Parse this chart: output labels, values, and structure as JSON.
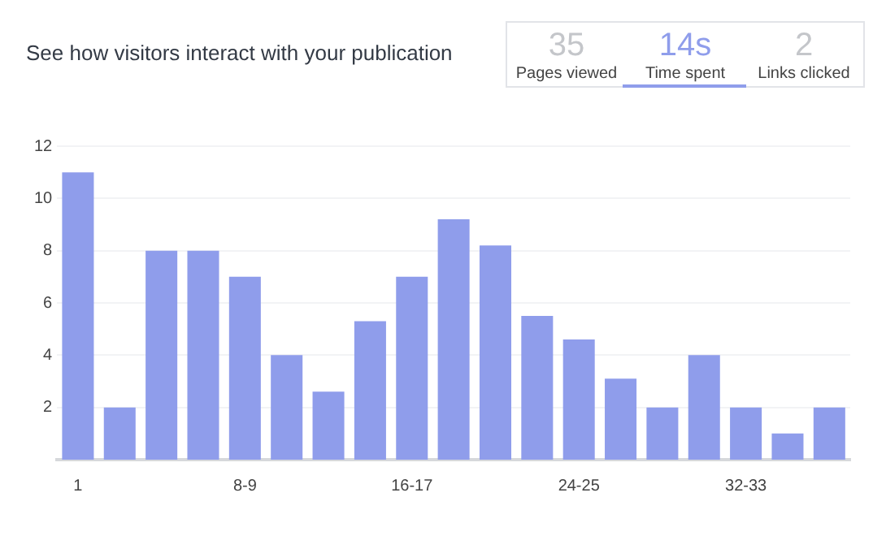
{
  "chart_data": {
    "type": "bar",
    "title": "See how visitors interact with your publication",
    "categories": [
      "1",
      null,
      null,
      null,
      "8-9",
      null,
      null,
      null,
      "16-17",
      null,
      null,
      null,
      "24-25",
      null,
      null,
      null,
      "32-33",
      null,
      null
    ],
    "values": [
      11,
      2,
      8,
      8,
      7,
      4,
      2.6,
      5.3,
      7,
      9.2,
      8.2,
      5.5,
      4.6,
      3.1,
      2,
      4,
      2,
      1,
      2
    ],
    "color": "#8f9deb",
    "ylim": [
      0,
      12
    ],
    "yticks": [
      2,
      4,
      6,
      8,
      10,
      12
    ],
    "grid": "y",
    "legend": false,
    "annotations": [
      "35",
      "Pages viewed",
      "14s",
      "Time spent",
      "2",
      "Links clicked"
    ]
  }
}
